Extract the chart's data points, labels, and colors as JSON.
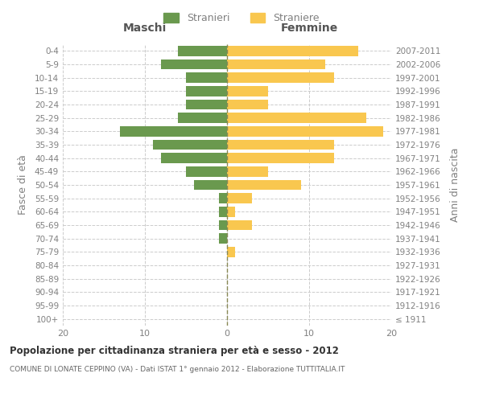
{
  "age_groups": [
    "100+",
    "95-99",
    "90-94",
    "85-89",
    "80-84",
    "75-79",
    "70-74",
    "65-69",
    "60-64",
    "55-59",
    "50-54",
    "45-49",
    "40-44",
    "35-39",
    "30-34",
    "25-29",
    "20-24",
    "15-19",
    "10-14",
    "5-9",
    "0-4"
  ],
  "birth_years": [
    "≤ 1911",
    "1912-1916",
    "1917-1921",
    "1922-1926",
    "1927-1931",
    "1932-1936",
    "1937-1941",
    "1942-1946",
    "1947-1951",
    "1952-1956",
    "1957-1961",
    "1962-1966",
    "1967-1971",
    "1972-1976",
    "1977-1981",
    "1982-1986",
    "1987-1991",
    "1992-1996",
    "1997-2001",
    "2002-2006",
    "2007-2011"
  ],
  "maschi": [
    0,
    0,
    0,
    0,
    0,
    0,
    1,
    1,
    1,
    1,
    4,
    5,
    8,
    9,
    13,
    6,
    5,
    5,
    5,
    8,
    6
  ],
  "femmine": [
    0,
    0,
    0,
    0,
    0,
    1,
    0,
    3,
    1,
    3,
    9,
    5,
    13,
    13,
    19,
    17,
    5,
    5,
    13,
    12,
    16
  ],
  "color_maschi": "#6a994e",
  "color_femmine": "#f9c74f",
  "title": "Popolazione per cittadinanza straniera per età e sesso - 2012",
  "subtitle": "COMUNE DI LONATE CEPPINO (VA) - Dati ISTAT 1° gennaio 2012 - Elaborazione TUTTITALIA.IT",
  "ylabel_left": "Fasce di età",
  "ylabel_right": "Anni di nascita",
  "xlabel_maschi": "Maschi",
  "xlabel_femmine": "Femmine",
  "legend_maschi": "Stranieri",
  "legend_femmine": "Straniere",
  "xlim": 20,
  "background_color": "#ffffff",
  "grid_color": "#cccccc",
  "text_color": "#808080"
}
